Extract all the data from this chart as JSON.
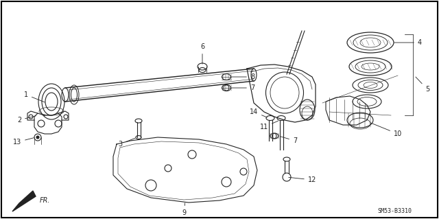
{
  "background_color": "#ffffff",
  "border_color": "#000000",
  "image_code": "SM53-B3310",
  "dark": "#222222",
  "font_size_labels": 7,
  "font_size_code": 6,
  "lw": 0.8
}
